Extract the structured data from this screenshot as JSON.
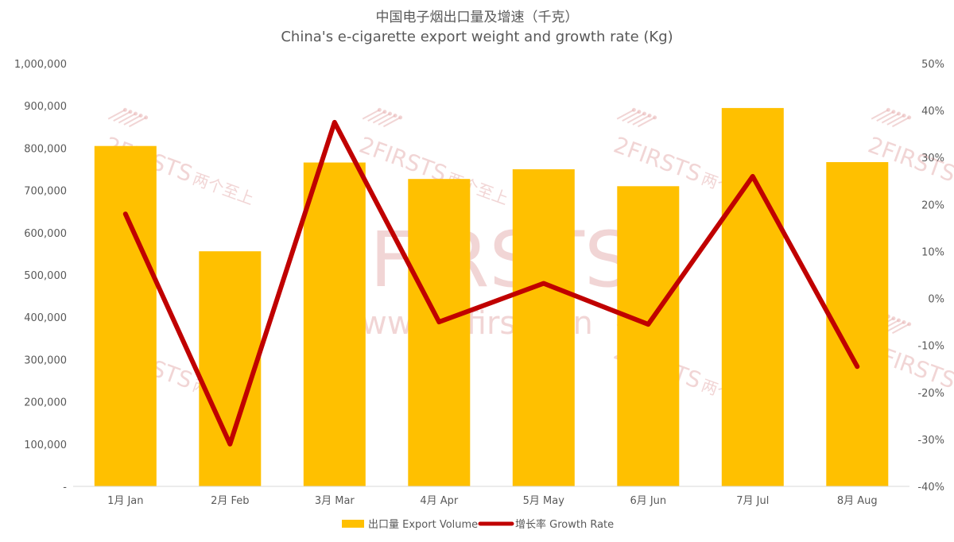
{
  "chart_data": {
    "type": "bar",
    "title": "中国电子烟出口量及增速（千克）",
    "subtitle": "China's e-cigarette export weight and growth rate (Kg)",
    "categories": [
      "1月 Jan",
      "2月 Feb",
      "3月 Mar",
      "4月 Apr",
      "5月 May",
      "6月 Jun",
      "7月 Jul",
      "8月 Aug"
    ],
    "series": [
      {
        "name": "出口量 Export Volume",
        "type": "bar",
        "axis": "left",
        "color": "#FFC000",
        "values": [
          805000,
          556000,
          766000,
          727000,
          750000,
          710000,
          895000,
          767000
        ]
      },
      {
        "name": "增长率 Growth Rate",
        "type": "line",
        "axis": "right",
        "color": "#C00000",
        "values": [
          18,
          -31,
          37.5,
          -5,
          3.2,
          -5.5,
          26,
          -14.5
        ]
      }
    ],
    "y_left": {
      "ylim": [
        0,
        1000000
      ],
      "ticks": [
        0,
        100000,
        200000,
        300000,
        400000,
        500000,
        600000,
        700000,
        800000,
        900000,
        1000000
      ],
      "tick_labels": [
        "-",
        "100,000",
        "200,000",
        "300,000",
        "400,000",
        "500,000",
        "600,000",
        "700,000",
        "800,000",
        "900,000",
        "1,000,000"
      ]
    },
    "y_right": {
      "ylim": [
        -40,
        50
      ],
      "ticks": [
        -40,
        -30,
        -20,
        -10,
        0,
        10,
        20,
        30,
        40,
        50
      ],
      "tick_labels": [
        "-40%",
        "-30%",
        "-20%",
        "-10%",
        "0%",
        "10%",
        "20%",
        "30%",
        "40%",
        "50%"
      ]
    },
    "grid": false,
    "legend_position": "bottom"
  },
  "watermark": {
    "brand": "2FIRSTS",
    "chinese": "两个至上",
    "url": "www.2firsts.cn"
  }
}
